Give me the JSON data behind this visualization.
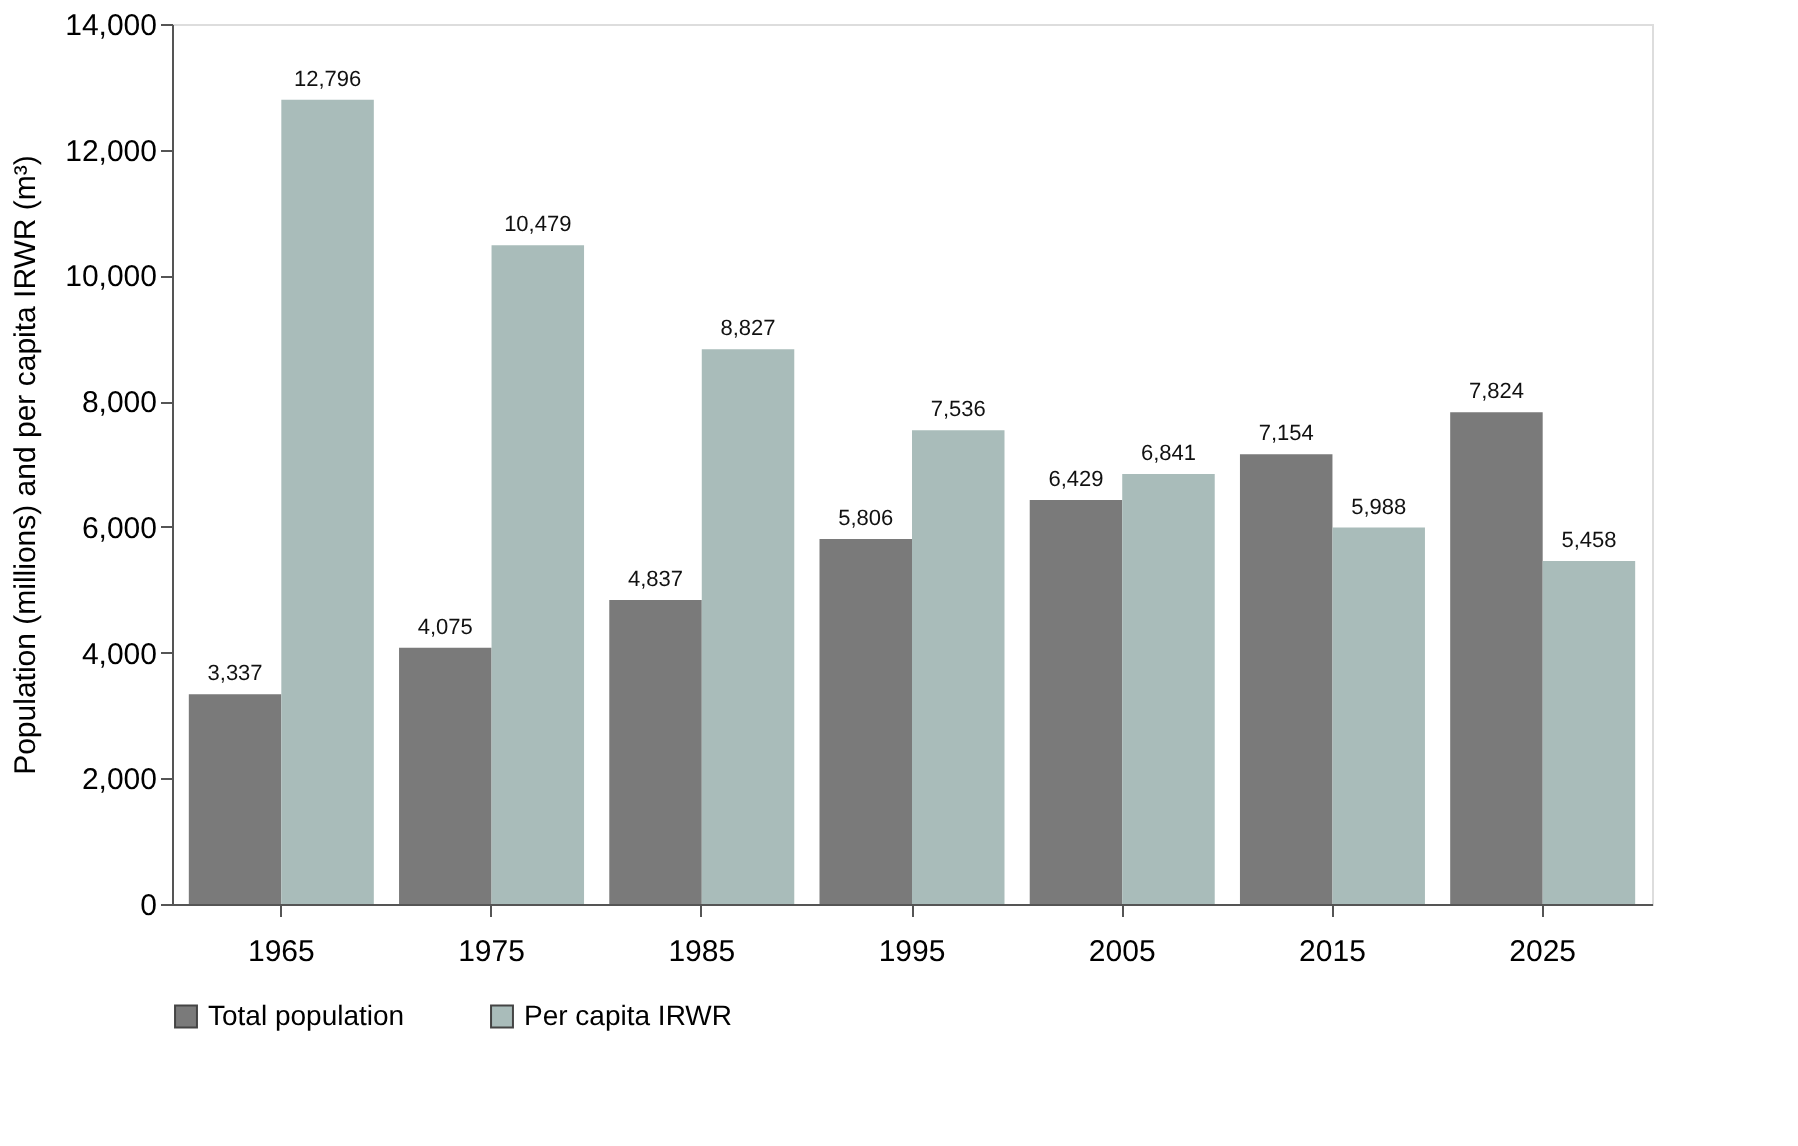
{
  "chart_data": {
    "type": "bar",
    "ylabel": "Population (millions) and per capita IRWR (m³)",
    "categories": [
      "1965",
      "1975",
      "1985",
      "1995",
      "2005",
      "2015",
      "2025"
    ],
    "series": [
      {
        "name": "Total population",
        "color": "#7a7a7a",
        "values": [
          3337,
          4075,
          4837,
          5806,
          6429,
          7154,
          7824
        ],
        "value_labels": [
          "3,337",
          "4,075",
          "4,837",
          "5,806",
          "6,429",
          "7,154",
          "7,824"
        ]
      },
      {
        "name": "Per capita IRWR",
        "color": "#a9bcba",
        "values": [
          12796,
          10479,
          8827,
          7536,
          6841,
          5988,
          5458
        ],
        "value_labels": [
          "12,796",
          "10,479",
          "8,827",
          "7,536",
          "6,841",
          "5,988",
          "5,458"
        ]
      }
    ],
    "ylim": [
      0,
      14000
    ],
    "yticks": [
      0,
      {
        "value": 2000,
        "label": "2,000"
      },
      {
        "value": 4000,
        "label": "4,000"
      },
      {
        "value": 6000,
        "label": "6,000"
      },
      {
        "value": 8000,
        "label": "8,000"
      },
      {
        "value": 10000,
        "label": "10,000"
      },
      {
        "value": 12000,
        "label": "12,000"
      },
      {
        "value": 14000,
        "label": "14,000"
      }
    ],
    "grid": false,
    "legend": "bottom"
  }
}
